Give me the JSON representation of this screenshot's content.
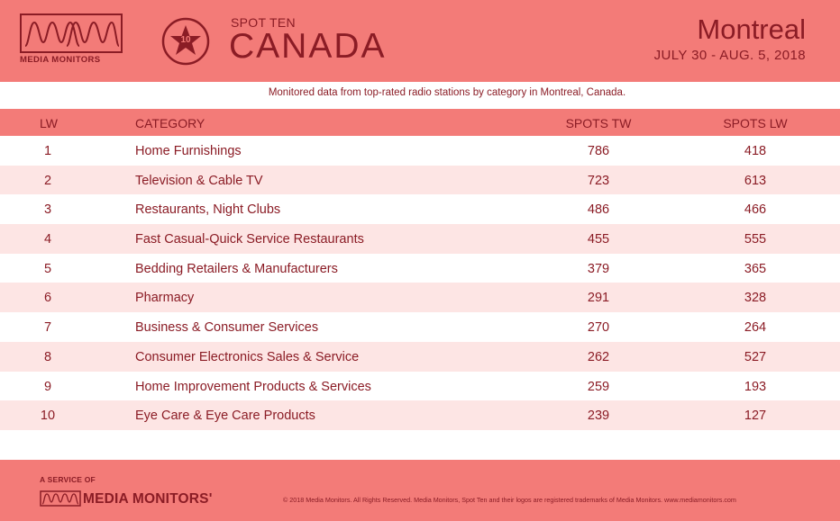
{
  "header": {
    "logo_text": "MEDIA MONITORS",
    "badge_number": "10",
    "spot_ten": "SPOT TEN",
    "country": "CANADA",
    "city": "Montreal",
    "dates": "JULY 30 - AUG. 5, 2018"
  },
  "subtitle": "Monitored data from top-rated radio stations by category in Montreal, Canada.",
  "table": {
    "columns": [
      "LW",
      "CATEGORY",
      "SPOTS TW",
      "SPOTS LW"
    ],
    "rows": [
      {
        "lw": "1",
        "category": "Home Furnishings",
        "spots_tw": "786",
        "spots_lw": "418"
      },
      {
        "lw": "2",
        "category": "Television & Cable TV",
        "spots_tw": "723",
        "spots_lw": "613"
      },
      {
        "lw": "3",
        "category": "Restaurants, Night Clubs",
        "spots_tw": "486",
        "spots_lw": "466"
      },
      {
        "lw": "4",
        "category": "Fast Casual-Quick Service Restaurants",
        "spots_tw": "455",
        "spots_lw": "555"
      },
      {
        "lw": "5",
        "category": "Bedding Retailers & Manufacturers",
        "spots_tw": "379",
        "spots_lw": "365"
      },
      {
        "lw": "6",
        "category": "Pharmacy",
        "spots_tw": "291",
        "spots_lw": "328"
      },
      {
        "lw": "7",
        "category": "Business & Consumer Services",
        "spots_tw": "270",
        "spots_lw": "264"
      },
      {
        "lw": "8",
        "category": "Consumer Electronics Sales & Service",
        "spots_tw": "262",
        "spots_lw": "527"
      },
      {
        "lw": "9",
        "category": "Home Improvement Products & Services",
        "spots_tw": "259",
        "spots_lw": "193"
      },
      {
        "lw": "10",
        "category": "Eye Care & Eye Care Products",
        "spots_tw": "239",
        "spots_lw": "127"
      }
    ]
  },
  "footer": {
    "service_of": "A SERVICE OF",
    "logo_text": "MEDIA MONITORS'",
    "copyright": "© 2018 Media Monitors.  All Rights Reserved. Media Monitors, Spot Ten and their logos are registered trademarks of Media Monitors. www.mediamonitors.com"
  },
  "colors": {
    "band": "#f37b78",
    "text": "#8b1c25",
    "alt_row": "#fde5e4"
  },
  "icons": [
    "media-monitors-logo-icon",
    "spot-ten-star-badge-icon"
  ]
}
